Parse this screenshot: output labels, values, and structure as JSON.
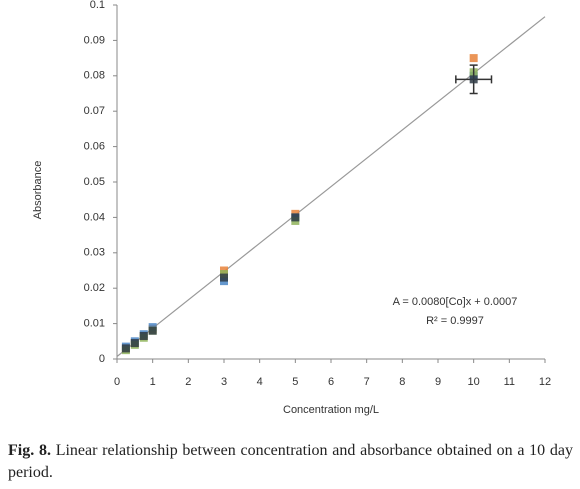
{
  "chart_data": {
    "type": "scatter",
    "x_label": "Concentration mg/L",
    "y_label": "Absorbance",
    "x": [
      0.25,
      0.5,
      0.75,
      1,
      3,
      5,
      10
    ],
    "series": [
      {
        "color": "#e8833a",
        "values": [
          0.003,
          0.0045,
          0.0065,
          0.0085,
          0.025,
          0.041,
          0.085
        ]
      },
      {
        "color": "#4a86c5",
        "values": [
          0.0035,
          0.005,
          0.007,
          0.009,
          0.022,
          0.04,
          0.08
        ]
      },
      {
        "color": "#8fb35a",
        "values": [
          0.0025,
          0.004,
          0.006,
          0.008,
          0.024,
          0.039,
          0.081
        ]
      },
      {
        "color": "#2f3b45",
        "values": [
          0.003,
          0.0045,
          0.0065,
          0.008,
          0.023,
          0.04,
          0.079
        ],
        "yerr": [
          null,
          null,
          null,
          null,
          null,
          null,
          0.004
        ],
        "xerr": [
          null,
          null,
          null,
          null,
          null,
          null,
          0.5
        ]
      }
    ],
    "trendline": {
      "label": "A = 0.0080[Co]x + 0.0007",
      "slope": 0.008,
      "intercept": 0.0007,
      "r2_label": "R² = 0.9997"
    },
    "xlim": [
      0,
      12
    ],
    "xticks": [
      0,
      1,
      2,
      3,
      4,
      5,
      6,
      7,
      8,
      9,
      10,
      11,
      12
    ],
    "ylim": [
      0,
      0.1
    ],
    "yticks": [
      0,
      0.01,
      0.02,
      0.03,
      0.04,
      0.05,
      0.06,
      0.07,
      0.08,
      0.09,
      0.1
    ],
    "caption_label": "Fig. 8.",
    "caption": "Linear relationship between concentration and absorbance obtained on a 10 day period."
  }
}
